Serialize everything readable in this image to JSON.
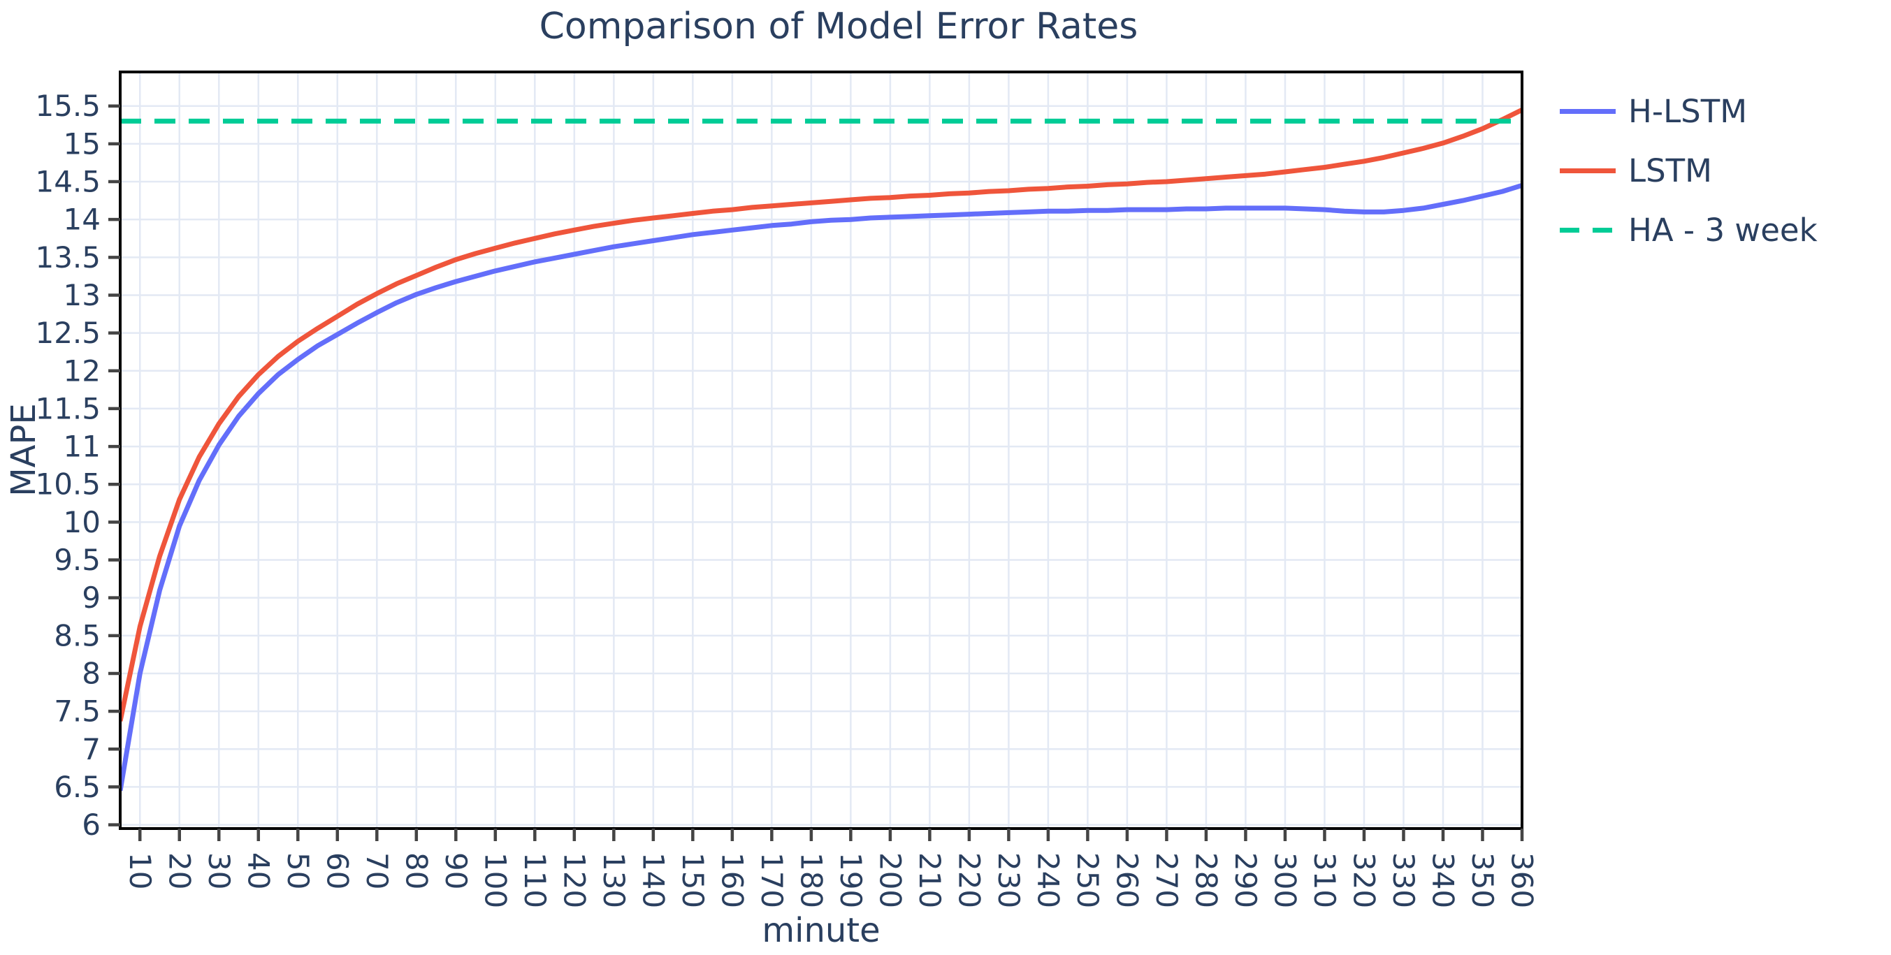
{
  "title": "Comparison of Model Error Rates",
  "legend": {
    "items": [
      {
        "label": "H-LSTM",
        "color": "#636efa",
        "style": "solid"
      },
      {
        "label": "LSTM",
        "color": "#ef553b",
        "style": "solid"
      },
      {
        "label": "HA - 3 week",
        "color": "#00cc96",
        "style": "dashed"
      }
    ]
  },
  "colors": {
    "text": "#2a3f5f",
    "axis_line": "#000000",
    "tick_mark": "#444444",
    "gridline": "#e3e9f4",
    "plot_background": "#ffffff"
  },
  "chart_data": {
    "type": "line",
    "title": "Comparison of Model Error Rates",
    "xlabel": "minute",
    "ylabel": "MAPE",
    "xlim": [
      5,
      360
    ],
    "ylim": [
      5.95,
      15.95
    ],
    "grid": true,
    "legend_position": "right",
    "xticks": [
      10,
      20,
      30,
      40,
      50,
      60,
      70,
      80,
      90,
      100,
      110,
      120,
      130,
      140,
      150,
      160,
      170,
      180,
      190,
      200,
      210,
      220,
      230,
      240,
      250,
      260,
      270,
      280,
      290,
      300,
      310,
      320,
      330,
      340,
      350,
      360
    ],
    "yticks": [
      6,
      6.5,
      7,
      7.5,
      8,
      8.5,
      9,
      9.5,
      10,
      10.5,
      11,
      11.5,
      12,
      12.5,
      13,
      13.5,
      14,
      14.5,
      15,
      15.5
    ],
    "x": [
      5,
      10,
      15,
      20,
      25,
      30,
      35,
      40,
      45,
      50,
      55,
      60,
      65,
      70,
      75,
      80,
      85,
      90,
      95,
      100,
      105,
      110,
      115,
      120,
      125,
      130,
      135,
      140,
      145,
      150,
      155,
      160,
      165,
      170,
      175,
      180,
      185,
      190,
      195,
      200,
      205,
      210,
      215,
      220,
      225,
      230,
      235,
      240,
      245,
      250,
      255,
      260,
      265,
      270,
      275,
      280,
      285,
      290,
      295,
      300,
      305,
      310,
      315,
      320,
      325,
      330,
      335,
      340,
      345,
      350,
      355,
      360
    ],
    "series": [
      {
        "name": "H-LSTM",
        "color": "#636efa",
        "dash": null,
        "width": 7,
        "values": [
          6.45,
          8.0,
          9.1,
          9.95,
          10.55,
          11.02,
          11.4,
          11.7,
          11.95,
          12.15,
          12.33,
          12.48,
          12.63,
          12.77,
          12.9,
          13.01,
          13.1,
          13.18,
          13.25,
          13.32,
          13.38,
          13.44,
          13.49,
          13.54,
          13.59,
          13.64,
          13.68,
          13.72,
          13.76,
          13.8,
          13.83,
          13.86,
          13.89,
          13.92,
          13.94,
          13.97,
          13.99,
          14.0,
          14.02,
          14.03,
          14.04,
          14.05,
          14.06,
          14.07,
          14.08,
          14.09,
          14.1,
          14.11,
          14.11,
          14.12,
          14.12,
          14.13,
          14.13,
          14.13,
          14.14,
          14.14,
          14.15,
          14.15,
          14.15,
          14.15,
          14.14,
          14.13,
          14.11,
          14.1,
          14.1,
          14.12,
          14.15,
          14.2,
          14.25,
          14.31,
          14.37,
          14.45
        ]
      },
      {
        "name": "LSTM",
        "color": "#ef553b",
        "dash": null,
        "width": 7,
        "values": [
          7.37,
          8.62,
          9.55,
          10.3,
          10.86,
          11.3,
          11.66,
          11.95,
          12.19,
          12.39,
          12.56,
          12.72,
          12.88,
          13.02,
          13.15,
          13.26,
          13.37,
          13.47,
          13.55,
          13.62,
          13.69,
          13.75,
          13.81,
          13.86,
          13.91,
          13.95,
          13.99,
          14.02,
          14.05,
          14.08,
          14.11,
          14.13,
          14.16,
          14.18,
          14.2,
          14.22,
          14.24,
          14.26,
          14.28,
          14.29,
          14.31,
          14.32,
          14.34,
          14.35,
          14.37,
          14.38,
          14.4,
          14.41,
          14.43,
          14.44,
          14.46,
          14.47,
          14.49,
          14.5,
          14.52,
          14.54,
          14.56,
          14.58,
          14.6,
          14.63,
          14.66,
          14.69,
          14.73,
          14.77,
          14.82,
          14.88,
          14.94,
          15.01,
          15.1,
          15.2,
          15.32,
          15.45
        ]
      },
      {
        "name": "HA - 3 week",
        "color": "#00cc96",
        "dash": [
          30,
          19
        ],
        "width": 7,
        "constant": 15.3
      }
    ]
  }
}
